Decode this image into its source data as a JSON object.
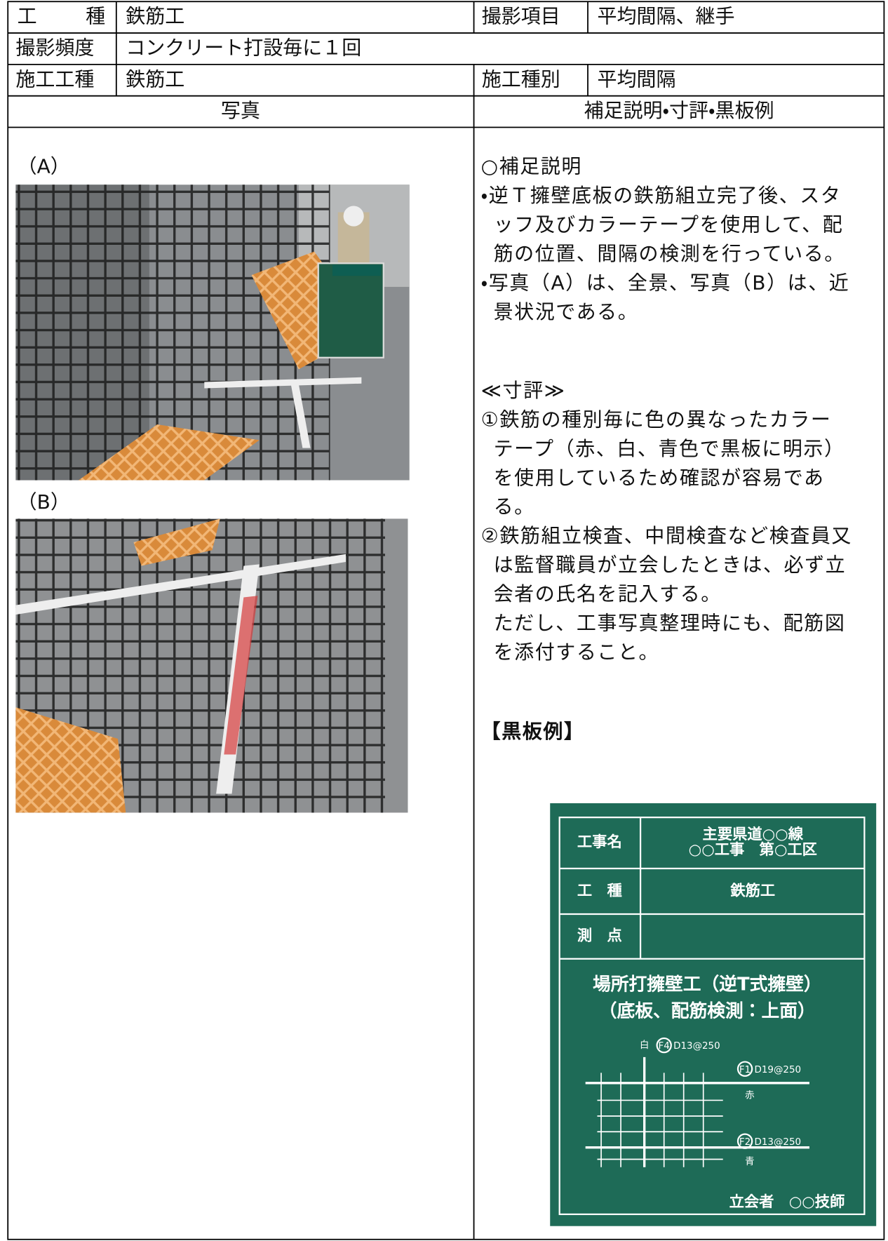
{
  "header": {
    "rows": [
      [
        "工　　種",
        "鉄筋工",
        "撮影項目",
        "平均間隔、継手"
      ],
      [
        "撮影頻度",
        "コンクリート打設毎に１回"
      ],
      [
        "施工工種",
        "鉄筋工",
        "施工種別",
        "平均間隔"
      ],
      [
        "写真",
        "補足説明・寸評・黒板例"
      ]
    ]
  },
  "photos": [
    {
      "label": "（A）"
    },
    {
      "label": "（B）"
    }
  ],
  "notes": {
    "supplement": {
      "heading": "○補足説明",
      "items": [
        [
          "・逆Ｔ擁壁底板の鉄筋組立完了後、スタ",
          "ッフ及びカラーテープを使用して、配",
          "筋の位置、間隔の検測を行っている。"
        ],
        [
          "・写真（A）は、全景、写真（B）は、近",
          "景状況である。"
        ]
      ]
    },
    "review": {
      "heading": "≪寸評≫",
      "items": [
        [
          "①鉄筋の種別毎に色の異なったカラー",
          "テープ（赤、白、青色で黒板に明示）",
          "を使用しているため確認が容易であ",
          "る。"
        ],
        [
          "②鉄筋組立検査、中間検査など検査員又",
          "は監督職員が立会したときは、必ず立",
          "会者の氏名を記入する。",
          "ただし、工事写真整理時にも、配筋図",
          "を添付すること。"
        ]
      ]
    },
    "blackboard_heading": "【黒板例】"
  },
  "blackboard": {
    "rows": [
      {
        "label": "工事名",
        "value": [
          "主要県道○○線",
          "○○工事　第○工区"
        ]
      },
      {
        "label": "工　種",
        "value": [
          "鉄筋工"
        ]
      },
      {
        "label": "測　点",
        "value": []
      }
    ],
    "title": [
      "場所打擁壁工（逆T式擁壁）",
      "（底板、配筋検測：上面）"
    ],
    "diagram": {
      "top": [
        "白",
        "F4",
        "D13@250"
      ],
      "right_upper": [
        "F1",
        "D19@250",
        "赤"
      ],
      "right_lower": [
        "F2",
        "D13@250",
        "青"
      ]
    },
    "footer": "立会者　○○技師"
  }
}
